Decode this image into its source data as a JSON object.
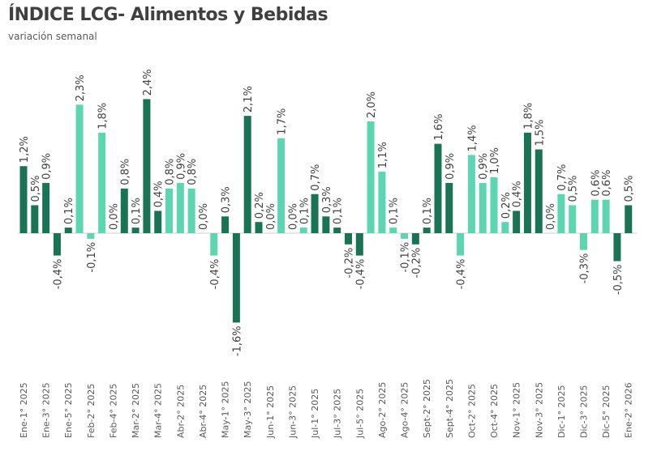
{
  "chart_data": {
    "type": "bar",
    "title": "ÍNDICE LCG- Alimentos y Bebidas",
    "subtitle": "variación semanal",
    "xlabel": "",
    "ylabel": "",
    "ylim": [
      -1.6,
      2.4
    ],
    "grid": false,
    "legend": "none",
    "colors": {
      "dark": "#1b7355",
      "light": "#5dd5b0"
    },
    "x_tick_labels": [
      "Ene-1° 2025",
      "Ene-3° 2025",
      "Ene-5° 2025",
      "Feb-2° 2025",
      "Feb-4° 2025",
      "Mar-2° 2025",
      "Mar-4° 2025",
      "Abr-2° 2025",
      "Abr-4° 2025",
      "May-1° 2025",
      "May-3° 2025",
      "Jun-1° 2025",
      "Jun-3° 2025",
      "Jul-1° 2025",
      "Jul-3° 2025",
      "Jul-5° 2025",
      "Ago-2° 2025",
      "Ago-4° 2025",
      "Sept-2° 2025",
      "Sept-4° 2025",
      "Oct-2° 2025",
      "Oct-4° 2025",
      "Nov-1° 2025",
      "Nov-3° 2025",
      "Dic-1° 2025",
      "Dic-3° 2025",
      "Dic-5° 2025",
      "Ene-2° 2026"
    ],
    "values": [
      1.2,
      0.5,
      0.9,
      -0.4,
      0.1,
      2.3,
      -0.1,
      1.8,
      0.0,
      0.8,
      0.1,
      2.4,
      0.4,
      0.8,
      0.9,
      0.8,
      0.0,
      -0.4,
      0.3,
      -1.6,
      2.1,
      0.2,
      0.0,
      1.7,
      0.0,
      0.1,
      0.7,
      0.3,
      0.1,
      -0.2,
      -0.4,
      2.0,
      1.1,
      0.1,
      -0.1,
      -0.2,
      0.1,
      1.6,
      0.9,
      -0.4,
      1.4,
      0.9,
      1.0,
      0.2,
      0.4,
      1.8,
      1.5,
      0.0,
      0.7,
      0.5,
      -0.3,
      0.6,
      0.6,
      -0.5,
      0.5
    ],
    "data_labels": [
      "1,2%",
      "0,5%",
      "0,9%",
      "-0,4%",
      "0,1%",
      "2,3%",
      "-0,1%",
      "1,8%",
      "0,0%",
      "0,8%",
      "0,1%",
      "2,4%",
      "0,4%",
      "0,8%",
      "0,9%",
      "0,8%",
      "0,0%",
      "-0,4%",
      "0,3%",
      "-1,6%",
      "2,1%",
      "0,2%",
      "0,0%",
      "1,7%",
      "0,0%",
      "0,1%",
      "0,7%",
      "0,3%",
      "0,1%",
      "-0,2%",
      "-0,4%",
      "2,0%",
      "1,1%",
      "0,1%",
      "-0,1%",
      "-0,2%",
      "0,1%",
      "1,6%",
      "0,9%",
      "-0,4%",
      "1,4%",
      "0,9%",
      "1,0%",
      "0,2%",
      "0,4%",
      "1,8%",
      "1,5%",
      "0,0%",
      "0,7%",
      "0,5%",
      "-0,3%",
      "0,6%",
      "0,6%",
      "-0,5%",
      "0,5%"
    ],
    "bar_color_group": [
      "dark",
      "dark",
      "dark",
      "dark",
      "dark",
      "light",
      "light",
      "light",
      "light",
      "dark",
      "dark",
      "dark",
      "dark",
      "light",
      "light",
      "light",
      "light",
      "light",
      "dark",
      "dark",
      "dark",
      "dark",
      "light",
      "light",
      "light",
      "light",
      "dark",
      "dark",
      "dark",
      "dark",
      "dark",
      "light",
      "light",
      "light",
      "light",
      "dark",
      "dark",
      "dark",
      "dark",
      "light",
      "light",
      "light",
      "light",
      "light",
      "dark",
      "dark",
      "dark",
      "dark",
      "light",
      "light",
      "light",
      "light",
      "light",
      "dark",
      "dark"
    ]
  }
}
